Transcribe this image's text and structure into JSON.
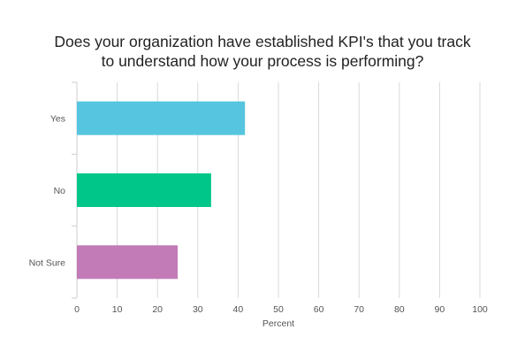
{
  "chart_data": {
    "type": "bar",
    "orientation": "horizontal",
    "title_lines": [
      "Does your organization have established KPI's that you track",
      "to understand how your process is performing?"
    ],
    "categories": [
      "Yes",
      "No",
      "Not Sure"
    ],
    "values": [
      41.7,
      33.3,
      25.0
    ],
    "colors": [
      "#56c5df",
      "#00c68a",
      "#c27bb6"
    ],
    "xlabel": "Percent",
    "ylabel": "",
    "xlim": [
      0,
      100
    ],
    "x_ticks": [
      "0",
      "10",
      "20",
      "30",
      "40",
      "50",
      "60",
      "70",
      "80",
      "90",
      "100"
    ],
    "grid": true,
    "legend": "none"
  }
}
